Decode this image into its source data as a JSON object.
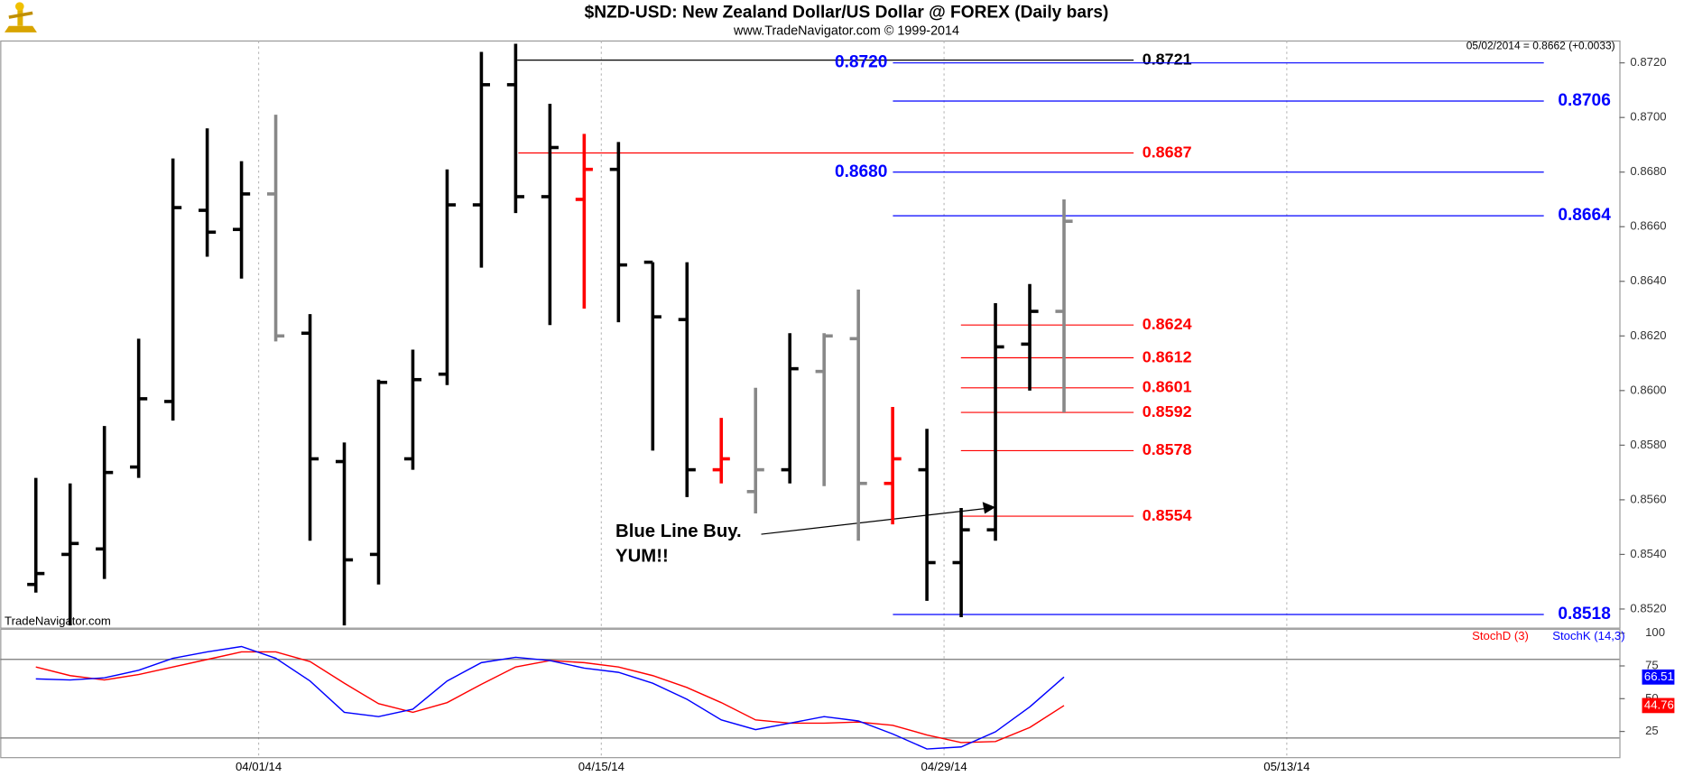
{
  "chart_data": [
    {
      "type": "ohlc",
      "title": "$NZD-USD:  New Zealand Dollar/US Dollar @ FOREX  (Daily bars)",
      "subtitle": "www.TradeNavigator.com © 1999-2014",
      "quote": "05/02/2014 = 0.8662 (+0.0033)",
      "watermark": "TradeNavigator.com",
      "annotations": [
        "Blue Line Buy.",
        "YUM!!"
      ],
      "ylim": [
        0.8513,
        0.8728
      ],
      "yticks": [
        {
          "value": 0.852,
          "label": "0.8520"
        },
        {
          "value": 0.854,
          "label": "0.8540"
        },
        {
          "value": 0.856,
          "label": "0.8560"
        },
        {
          "value": 0.858,
          "label": "0.8580"
        },
        {
          "value": 0.86,
          "label": "0.8600"
        },
        {
          "value": 0.862,
          "label": "0.8620"
        },
        {
          "value": 0.864,
          "label": "0.8640"
        },
        {
          "value": 0.866,
          "label": "0.8660"
        },
        {
          "value": 0.868,
          "label": "0.8680"
        },
        {
          "value": 0.87,
          "label": "0.8700"
        },
        {
          "value": 0.872,
          "label": "0.8720"
        }
      ],
      "xticks": [
        {
          "value": 6.5,
          "label": "04/01/14"
        },
        {
          "value": 16.5,
          "label": "04/15/14"
        },
        {
          "value": 26.5,
          "label": "04/29/14"
        },
        {
          "value": 36.5,
          "label": "05/13/14"
        }
      ],
      "grid": true,
      "bars": [
        {
          "open": 0.8529,
          "high": 0.8568,
          "low": 0.8526,
          "close": 0.8533,
          "color": "#000000"
        },
        {
          "open": 0.854,
          "high": 0.8566,
          "low": 0.8514,
          "close": 0.8544,
          "color": "#000000"
        },
        {
          "open": 0.8542,
          "high": 0.8587,
          "low": 0.8531,
          "close": 0.857,
          "color": "#000000"
        },
        {
          "open": 0.8572,
          "high": 0.8619,
          "low": 0.8568,
          "close": 0.8597,
          "color": "#000000"
        },
        {
          "open": 0.8596,
          "high": 0.8685,
          "low": 0.8589,
          "close": 0.8667,
          "color": "#000000"
        },
        {
          "open": 0.8666,
          "high": 0.8696,
          "low": 0.8649,
          "close": 0.8658,
          "color": "#000000"
        },
        {
          "open": 0.8659,
          "high": 0.8684,
          "low": 0.8641,
          "close": 0.8672,
          "color": "#000000"
        },
        {
          "open": 0.8672,
          "high": 0.8701,
          "low": 0.8618,
          "close": 0.862,
          "color": "#888888"
        },
        {
          "open": 0.8621,
          "high": 0.8628,
          "low": 0.8545,
          "close": 0.8575,
          "color": "#000000"
        },
        {
          "open": 0.8574,
          "high": 0.8581,
          "low": 0.8514,
          "close": 0.8538,
          "color": "#000000"
        },
        {
          "open": 0.854,
          "high": 0.8604,
          "low": 0.8529,
          "close": 0.8603,
          "color": "#000000"
        },
        {
          "open": 0.8575,
          "high": 0.8615,
          "low": 0.8571,
          "close": 0.8604,
          "color": "#000000"
        },
        {
          "open": 0.8606,
          "high": 0.8681,
          "low": 0.8602,
          "close": 0.8668,
          "color": "#000000"
        },
        {
          "open": 0.8668,
          "high": 0.8724,
          "low": 0.8645,
          "close": 0.8712,
          "color": "#000000"
        },
        {
          "open": 0.8712,
          "high": 0.8727,
          "low": 0.8665,
          "close": 0.8671,
          "color": "#000000"
        },
        {
          "open": 0.8671,
          "high": 0.8705,
          "low": 0.8624,
          "close": 0.8689,
          "color": "#000000"
        },
        {
          "open": 0.867,
          "high": 0.8694,
          "low": 0.863,
          "close": 0.8681,
          "color": "#ff0000"
        },
        {
          "open": 0.8681,
          "high": 0.8691,
          "low": 0.8625,
          "close": 0.8646,
          "color": "#000000"
        },
        {
          "open": 0.8647,
          "high": 0.8647,
          "low": 0.8578,
          "close": 0.8627,
          "color": "#000000"
        },
        {
          "open": 0.8626,
          "high": 0.8647,
          "low": 0.8561,
          "close": 0.8571,
          "color": "#000000"
        },
        {
          "open": 0.8571,
          "high": 0.859,
          "low": 0.8566,
          "close": 0.8575,
          "color": "#ff0000"
        },
        {
          "open": 0.8563,
          "high": 0.8601,
          "low": 0.8555,
          "close": 0.8571,
          "color": "#888888"
        },
        {
          "open": 0.8571,
          "high": 0.8621,
          "low": 0.8566,
          "close": 0.8608,
          "color": "#000000"
        },
        {
          "open": 0.8607,
          "high": 0.8621,
          "low": 0.8565,
          "close": 0.862,
          "color": "#888888"
        },
        {
          "open": 0.8619,
          "high": 0.8637,
          "low": 0.8545,
          "close": 0.8566,
          "color": "#888888"
        },
        {
          "open": 0.8566,
          "high": 0.8594,
          "low": 0.8551,
          "close": 0.8575,
          "color": "#ff0000"
        },
        {
          "open": 0.8571,
          "high": 0.8586,
          "low": 0.8523,
          "close": 0.8537,
          "color": "#000000"
        },
        {
          "open": 0.8537,
          "high": 0.8557,
          "low": 0.8517,
          "close": 0.8549,
          "color": "#000000"
        },
        {
          "open": 0.8549,
          "high": 0.8632,
          "low": 0.8545,
          "close": 0.8616,
          "color": "#000000"
        },
        {
          "open": 0.8617,
          "high": 0.8639,
          "low": 0.86,
          "close": 0.8629,
          "color": "#000000"
        },
        {
          "open": 0.8629,
          "high": 0.867,
          "low": 0.8592,
          "close": 0.8662,
          "color": "#888888"
        }
      ],
      "levels": [
        {
          "value": 0.8721,
          "label": "0.8721",
          "color": "#000000"
        },
        {
          "value": 0.872,
          "label": "0.8720",
          "color": "#0000ff"
        },
        {
          "value": 0.8706,
          "label": "0.8706",
          "color": "#0000ff"
        },
        {
          "value": 0.8687,
          "label": "0.8687",
          "color": "#ff0000"
        },
        {
          "value": 0.868,
          "label": "0.8680",
          "color": "#0000ff"
        },
        {
          "value": 0.8664,
          "label": "0.8664",
          "color": "#0000ff"
        },
        {
          "value": 0.8624,
          "label": "0.8624",
          "color": "#ff0000"
        },
        {
          "value": 0.8612,
          "label": "0.8612",
          "color": "#ff0000"
        },
        {
          "value": 0.8601,
          "label": "0.8601",
          "color": "#ff0000"
        },
        {
          "value": 0.8592,
          "label": "0.8592",
          "color": "#ff0000"
        },
        {
          "value": 0.8578,
          "label": "0.8578",
          "color": "#ff0000"
        },
        {
          "value": 0.8554,
          "label": "0.8554",
          "color": "#ff0000"
        },
        {
          "value": 0.8518,
          "label": "0.8518",
          "color": "#0000ff"
        }
      ]
    },
    {
      "type": "line",
      "ylim": [
        5,
        103
      ],
      "yticks": [
        25,
        50,
        75,
        100
      ],
      "bands": [
        20,
        80
      ],
      "series": [
        {
          "name": "StochD (3)",
          "color": "#ff0000",
          "values": [
            74.2,
            67.6,
            64.3,
            68.4,
            74.2,
            79.9,
            85.7,
            85.7,
            78.3,
            61.8,
            46.2,
            39.6,
            47.0,
            61.0,
            74.2,
            79.1,
            77.5,
            74.2,
            67.6,
            58.5,
            47.0,
            33.8,
            31.3,
            31.3,
            32.2,
            29.7,
            22.3,
            16.5,
            17.3,
            28.0,
            44.76
          ]
        },
        {
          "name": "StochK (14,3)",
          "color": "#0000ff",
          "values": [
            65.1,
            64.3,
            65.9,
            71.7,
            80.8,
            85.7,
            89.8,
            80.8,
            63.5,
            39.6,
            36.3,
            42.0,
            63.5,
            77.5,
            81.6,
            79.1,
            73.3,
            70.1,
            61.8,
            49.5,
            33.8,
            26.4,
            31.3,
            36.3,
            33.0,
            23.1,
            11.6,
            13.2,
            24.7,
            43.7,
            66.51
          ]
        }
      ]
    }
  ]
}
